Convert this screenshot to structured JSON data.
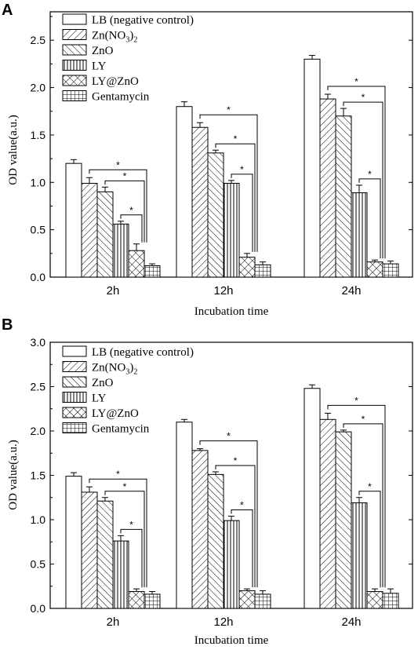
{
  "chart_data": [
    {
      "type": "bar",
      "panel": "A",
      "title": "",
      "xlabel": "Incubation time",
      "ylabel": "OD value(a.u.)",
      "ylim": [
        0,
        2.8
      ],
      "yticks": [
        "0.0",
        "0.5",
        "1.0",
        "1.5",
        "2.0",
        "2.5"
      ],
      "categories": [
        "2h",
        "12h",
        "24h"
      ],
      "legend_position": "top-left",
      "series": [
        {
          "name": "LB (negative control)",
          "values": [
            1.2,
            1.8,
            2.3
          ],
          "errors": [
            0.04,
            0.05,
            0.04
          ]
        },
        {
          "name": "Zn(NO3)2",
          "values": [
            0.99,
            1.58,
            1.88
          ],
          "errors": [
            0.06,
            0.05,
            0.05
          ]
        },
        {
          "name": "ZnO",
          "values": [
            0.9,
            1.31,
            1.7
          ],
          "errors": [
            0.05,
            0.03,
            0.08
          ]
        },
        {
          "name": "LY",
          "values": [
            0.56,
            0.99,
            0.89
          ],
          "errors": [
            0.03,
            0.03,
            0.08
          ]
        },
        {
          "name": "LY@ZnO",
          "values": [
            0.28,
            0.21,
            0.16
          ],
          "errors": [
            0.07,
            0.04,
            0.02
          ]
        },
        {
          "name": "Gentamycin",
          "values": [
            0.12,
            0.13,
            0.14
          ],
          "errors": [
            0.02,
            0.03,
            0.03
          ]
        }
      ],
      "annotations": [
        {
          "label": "*",
          "cat": 0,
          "from": 1,
          "to": 4
        },
        {
          "label": "*",
          "cat": 0,
          "from": 2,
          "to": 4
        },
        {
          "label": "*",
          "cat": 0,
          "from": 3,
          "to": 4
        },
        {
          "label": "*",
          "cat": 1,
          "from": 1,
          "to": 4
        },
        {
          "label": "*",
          "cat": 1,
          "from": 2,
          "to": 4
        },
        {
          "label": "*",
          "cat": 1,
          "from": 3,
          "to": 4
        },
        {
          "label": "*",
          "cat": 2,
          "from": 1,
          "to": 4
        },
        {
          "label": "*",
          "cat": 2,
          "from": 2,
          "to": 4
        },
        {
          "label": "*",
          "cat": 2,
          "from": 3,
          "to": 4
        }
      ]
    },
    {
      "type": "bar",
      "panel": "B",
      "title": "",
      "xlabel": "Incubation time",
      "ylabel": "OD value(a.u.)",
      "ylim": [
        0,
        3.0
      ],
      "yticks": [
        "0.0",
        "0.5",
        "1.0",
        "1.5",
        "2.0",
        "2.5",
        "3.0"
      ],
      "categories": [
        "2h",
        "12h",
        "24h"
      ],
      "legend_position": "top-left",
      "series": [
        {
          "name": "LB (negative control)",
          "values": [
            1.49,
            2.1,
            2.48
          ],
          "errors": [
            0.04,
            0.03,
            0.04
          ]
        },
        {
          "name": "Zn(NO3)2",
          "values": [
            1.31,
            1.78,
            2.13
          ],
          "errors": [
            0.06,
            0.02,
            0.07
          ]
        },
        {
          "name": "ZnO",
          "values": [
            1.21,
            1.51,
            1.99
          ],
          "errors": [
            0.04,
            0.03,
            0.02
          ]
        },
        {
          "name": "LY",
          "values": [
            0.76,
            0.99,
            1.19
          ],
          "errors": [
            0.06,
            0.05,
            0.06
          ]
        },
        {
          "name": "LY@ZnO",
          "values": [
            0.19,
            0.2,
            0.19
          ],
          "errors": [
            0.03,
            0.02,
            0.03
          ]
        },
        {
          "name": "Gentamycin",
          "values": [
            0.16,
            0.16,
            0.17
          ],
          "errors": [
            0.03,
            0.04,
            0.05
          ]
        }
      ],
      "annotations": [
        {
          "label": "*",
          "cat": 0,
          "from": 1,
          "to": 4
        },
        {
          "label": "*",
          "cat": 0,
          "from": 2,
          "to": 4
        },
        {
          "label": "*",
          "cat": 0,
          "from": 3,
          "to": 4
        },
        {
          "label": "*",
          "cat": 1,
          "from": 1,
          "to": 4
        },
        {
          "label": "*",
          "cat": 1,
          "from": 2,
          "to": 4
        },
        {
          "label": "*",
          "cat": 1,
          "from": 3,
          "to": 4
        },
        {
          "label": "*",
          "cat": 2,
          "from": 1,
          "to": 4
        },
        {
          "label": "*",
          "cat": 2,
          "from": 2,
          "to": 4
        },
        {
          "label": "*",
          "cat": 2,
          "from": 3,
          "to": 4
        }
      ]
    }
  ],
  "legend": {
    "labels": [
      "LB (negative control)",
      "Zn(NO",
      "ZnO",
      "LY",
      "LY@ZnO",
      "Gentamycin"
    ],
    "zn_sub3": "3",
    "zn_close": ")",
    "zn_sub2": "2",
    "patterns": [
      "none",
      "diag-back",
      "diag-fwd",
      "vertical",
      "cross",
      "grid"
    ]
  },
  "panel_labels": [
    "A",
    "B"
  ]
}
